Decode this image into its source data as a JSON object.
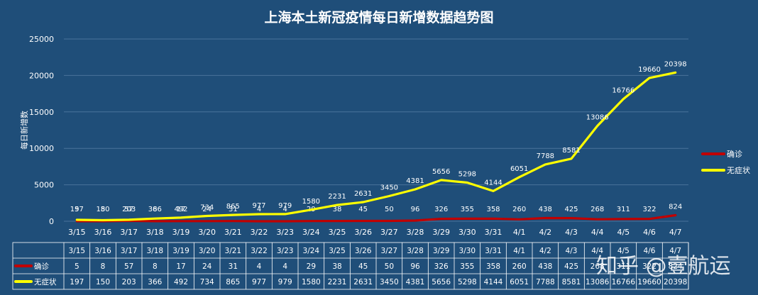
{
  "chart_data": {
    "type": "line",
    "title": "上海本土新冠疫情每日新增数据趋势图",
    "xlabel": "",
    "ylabel": "每日新增数",
    "ylim": [
      0,
      25000
    ],
    "yticks": [
      0,
      5000,
      10000,
      15000,
      20000,
      25000
    ],
    "grid": true,
    "legend_position": "right",
    "categories": [
      "3/15",
      "3/16",
      "3/17",
      "3/18",
      "3/19",
      "3/20",
      "3/21",
      "3/22",
      "3/23",
      "3/24",
      "3/25",
      "3/26",
      "3/27",
      "3/28",
      "3/29",
      "3/30",
      "3/31",
      "4/1",
      "4/2",
      "4/3",
      "4/4",
      "4/5",
      "4/6",
      "4/7"
    ],
    "series": [
      {
        "name": "确诊",
        "color": "#c00000",
        "values": [
          5,
          8,
          57,
          8,
          17,
          24,
          31,
          4,
          4,
          29,
          38,
          45,
          50,
          96,
          326,
          355,
          358,
          260,
          438,
          425,
          268,
          311,
          322,
          824
        ]
      },
      {
        "name": "无症状",
        "color": "#ffff00",
        "values": [
          197,
          150,
          203,
          366,
          492,
          734,
          865,
          977,
          979,
          1580,
          2231,
          2631,
          3450,
          4381,
          5656,
          5298,
          4144,
          6051,
          7788,
          8581,
          13086,
          16766,
          19660,
          20398
        ]
      }
    ]
  },
  "watermark": "知乎 @壹航运"
}
